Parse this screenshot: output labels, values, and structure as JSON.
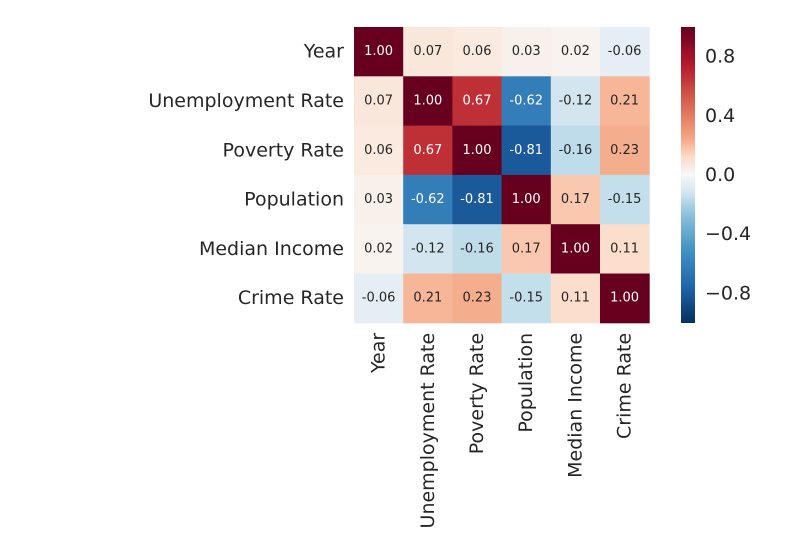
{
  "chart_data": {
    "type": "heatmap",
    "title": "",
    "xlabel": "",
    "ylabel": "",
    "labels": [
      "Year",
      "Unemployment Rate",
      "Poverty Rate",
      "Population",
      "Median Income",
      "Crime Rate"
    ],
    "values": [
      [
        1.0,
        0.07,
        0.06,
        0.03,
        0.02,
        -0.06
      ],
      [
        0.07,
        1.0,
        0.67,
        -0.62,
        -0.12,
        0.21
      ],
      [
        0.06,
        0.67,
        1.0,
        -0.81,
        -0.16,
        0.23
      ],
      [
        0.03,
        -0.62,
        -0.81,
        1.0,
        0.17,
        -0.15
      ],
      [
        0.02,
        -0.12,
        -0.16,
        0.17,
        1.0,
        0.11
      ],
      [
        -0.06,
        0.21,
        0.23,
        -0.15,
        0.11,
        1.0
      ]
    ],
    "display": [
      [
        "1.00",
        "0.07",
        "0.06",
        "0.03",
        "0.02",
        "-0.06"
      ],
      [
        "0.07",
        "1.00",
        "0.67",
        "-0.62",
        "-0.12",
        "0.21"
      ],
      [
        "0.06",
        "0.67",
        "1.00",
        "-0.81",
        "-0.16",
        "0.23"
      ],
      [
        "0.03",
        "-0.62",
        "-0.81",
        "1.00",
        "0.17",
        "-0.15"
      ],
      [
        "0.02",
        "-0.12",
        "-0.16",
        "0.17",
        "1.00",
        "0.11"
      ],
      [
        "-0.06",
        "0.21",
        "0.23",
        "-0.15",
        "0.11",
        "1.00"
      ]
    ],
    "colormap": "RdBu_r",
    "vmin": -1.0,
    "vmax": 1.0,
    "colorbar": {
      "ticks": [
        0.8,
        0.4,
        0.0,
        -0.4,
        -0.8
      ],
      "tick_labels": [
        "0.8",
        "0.4",
        "0.0",
        "−0.4",
        "−0.8"
      ]
    },
    "grid": false
  }
}
